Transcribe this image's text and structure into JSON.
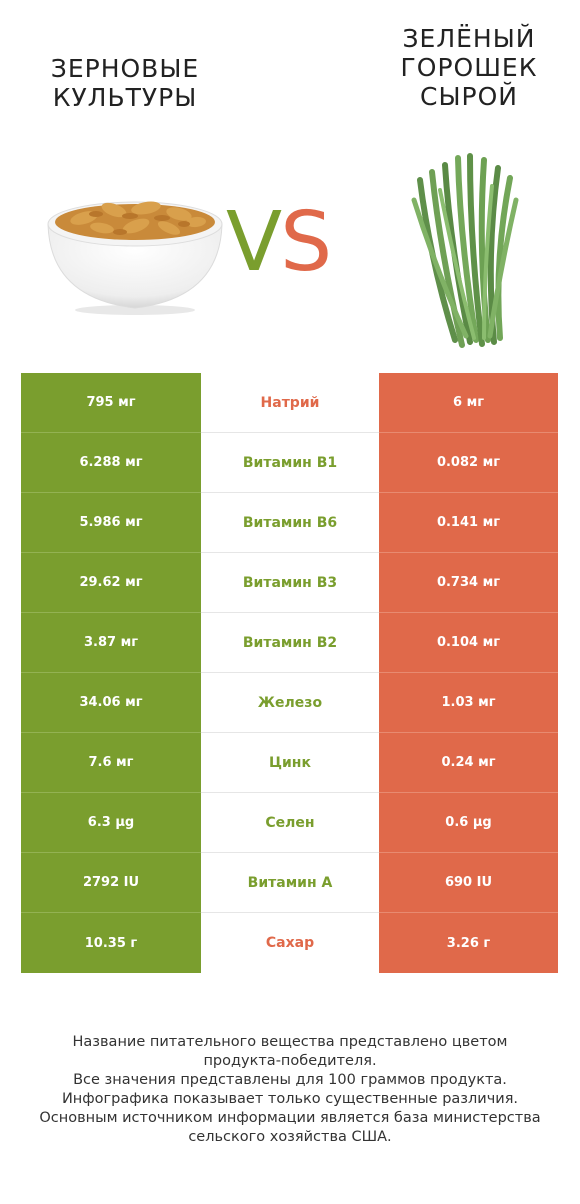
{
  "header": {
    "left_title": [
      "ЗЕРНОВЫЕ",
      "КУЛЬТУРЫ"
    ],
    "right_title": [
      "ЗЕЛЁНЫЙ",
      "ГОРОШЕК",
      "СЫРОЙ"
    ],
    "vs_v": "V",
    "vs_s": "S"
  },
  "colors": {
    "left_product": "#7a9e2e",
    "right_product": "#e0694a"
  },
  "rows": [
    {
      "left": "795 мг",
      "nutrient": "Натрий",
      "right": "6 мг",
      "winner": "right"
    },
    {
      "left": "6.288 мг",
      "nutrient": "Витамин B1",
      "right": "0.082 мг",
      "winner": "left"
    },
    {
      "left": "5.986 мг",
      "nutrient": "Витамин B6",
      "right": "0.141 мг",
      "winner": "left"
    },
    {
      "left": "29.62 мг",
      "nutrient": "Витамин B3",
      "right": "0.734 мг",
      "winner": "left"
    },
    {
      "left": "3.87 мг",
      "nutrient": "Витамин B2",
      "right": "0.104 мг",
      "winner": "left"
    },
    {
      "left": "34.06 мг",
      "nutrient": "Железо",
      "right": "1.03 мг",
      "winner": "left"
    },
    {
      "left": "7.6 мг",
      "nutrient": "Цинк",
      "right": "0.24 мг",
      "winner": "left"
    },
    {
      "left": "6.3 µg",
      "nutrient": "Селен",
      "right": "0.6 µg",
      "winner": "left"
    },
    {
      "left": "2792 IU",
      "nutrient": "Витамин A",
      "right": "690 IU",
      "winner": "left"
    },
    {
      "left": "10.35 г",
      "nutrient": "Сахар",
      "right": "3.26 г",
      "winner": "right"
    }
  ],
  "footer": [
    "Название питательного вещества представлено цветом",
    "продукта-победителя.",
    "Все значения представлены для 100 граммов продукта.",
    "Инфографика показывает только существенные различия.",
    "Основным источником информации является база министерства",
    "сельского хозяйства США."
  ]
}
